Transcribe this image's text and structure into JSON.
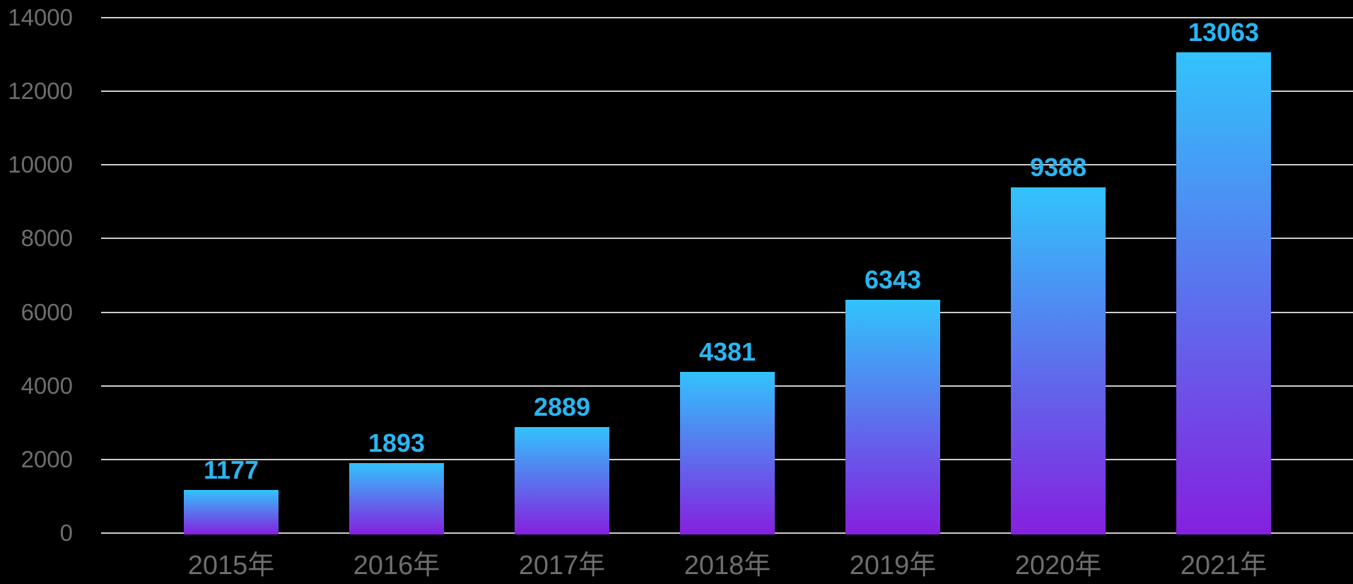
{
  "chart_data": {
    "type": "bar",
    "title": "",
    "xlabel": "",
    "ylabel": "",
    "categories": [
      "2015年",
      "2016年",
      "2017年",
      "2018年",
      "2019年",
      "2020年",
      "2021年"
    ],
    "values": [
      1177,
      1893,
      2889,
      4381,
      6343,
      9388,
      13063
    ],
    "value_labels": [
      "1177",
      "1893",
      "2889",
      "4381",
      "6343",
      "9388",
      "13063"
    ],
    "ylim": [
      0,
      14000
    ],
    "ytick_step": 2000,
    "yticks": [
      "0",
      "2000",
      "4000",
      "6000",
      "8000",
      "10000",
      "12000",
      "14000"
    ],
    "grid": true,
    "legend": false
  },
  "style": {
    "background": "#000000",
    "gridline_color": "#cdcdcd",
    "axis_label_color": "#6e6e6e",
    "value_label_color": "#29b6f2",
    "bar_gradient_top": "#32c3fc",
    "bar_gradient_bottom": "#8520df"
  }
}
